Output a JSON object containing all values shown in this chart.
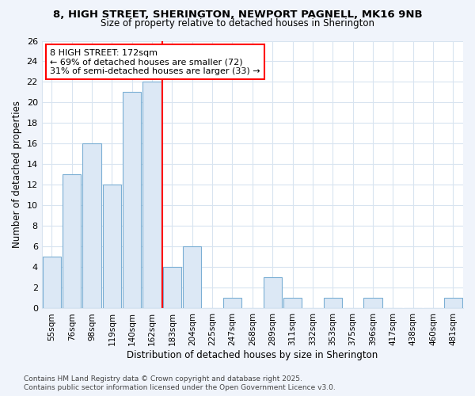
{
  "title1": "8, HIGH STREET, SHERINGTON, NEWPORT PAGNELL, MK16 9NB",
  "title2": "Size of property relative to detached houses in Sherington",
  "xlabel": "Distribution of detached houses by size in Sherington",
  "ylabel": "Number of detached properties",
  "categories": [
    "55sqm",
    "76sqm",
    "98sqm",
    "119sqm",
    "140sqm",
    "162sqm",
    "183sqm",
    "204sqm",
    "225sqm",
    "247sqm",
    "268sqm",
    "289sqm",
    "311sqm",
    "332sqm",
    "353sqm",
    "375sqm",
    "396sqm",
    "417sqm",
    "438sqm",
    "460sqm",
    "481sqm"
  ],
  "values": [
    5,
    13,
    16,
    12,
    21,
    22,
    4,
    6,
    0,
    1,
    0,
    3,
    1,
    0,
    1,
    0,
    1,
    0,
    0,
    0,
    1
  ],
  "bar_color": "#dce8f5",
  "bar_edge_color": "#7bafd4",
  "vline_color": "red",
  "vline_index": 6,
  "annotation_text_line1": "8 HIGH STREET: 172sqm",
  "annotation_text_line2": "← 69% of detached houses are smaller (72)",
  "annotation_text_line3": "31% of semi-detached houses are larger (33) →",
  "annotation_box_color": "white",
  "annotation_box_edge_color": "red",
  "ylim": [
    0,
    26
  ],
  "yticks": [
    0,
    2,
    4,
    6,
    8,
    10,
    12,
    14,
    16,
    18,
    20,
    22,
    24,
    26
  ],
  "plot_bg_color": "#ffffff",
  "fig_bg_color": "#f0f4fb",
  "grid_color": "#d8e4f0",
  "footer1": "Contains HM Land Registry data © Crown copyright and database right 2025.",
  "footer2": "Contains public sector information licensed under the Open Government Licence v3.0."
}
